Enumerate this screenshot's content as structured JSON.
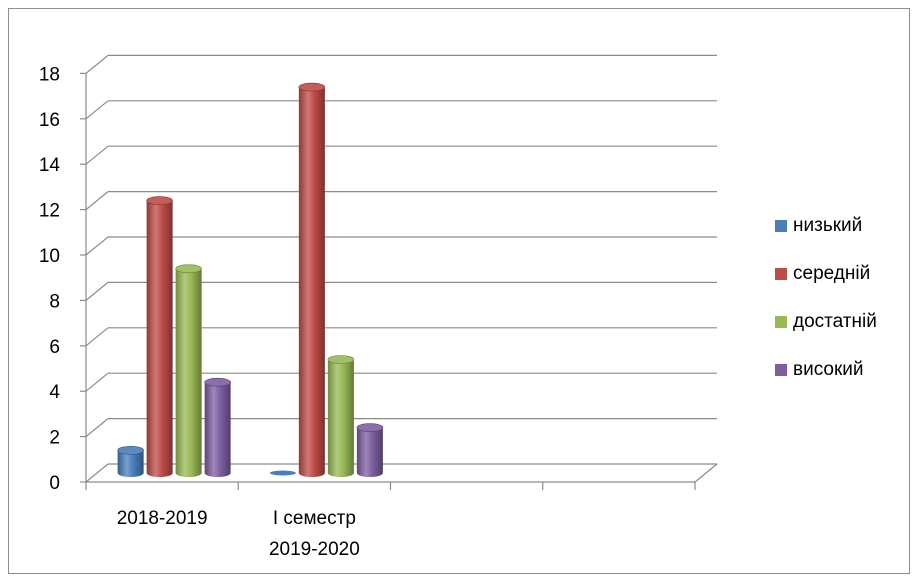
{
  "chart_data": {
    "type": "bar",
    "categories": [
      "2018-2019",
      "І семестр 2019-2020",
      "",
      ""
    ],
    "category_label_lines": [
      [
        "2018-2019"
      ],
      [
        "І семестр",
        "2019-2020"
      ],
      [],
      []
    ],
    "series": [
      {
        "name": "низький",
        "values": [
          1,
          0,
          null,
          null
        ],
        "color": "#4a7ebb"
      },
      {
        "name": "середній",
        "values": [
          12,
          17,
          null,
          null
        ],
        "color": "#be4b48"
      },
      {
        "name": "достатній",
        "values": [
          9,
          5,
          null,
          null
        ],
        "color": "#98b954"
      },
      {
        "name": "високий",
        "values": [
          4,
          2,
          null,
          null
        ],
        "color": "#7d5fa0"
      }
    ],
    "y_ticks": [
      "0",
      "2",
      "4",
      "6",
      "8",
      "10",
      "12",
      "14",
      "16",
      "18"
    ],
    "ylim": [
      0,
      18
    ],
    "grid": true,
    "legend_position": "right",
    "style": "3d-cylinder"
  }
}
